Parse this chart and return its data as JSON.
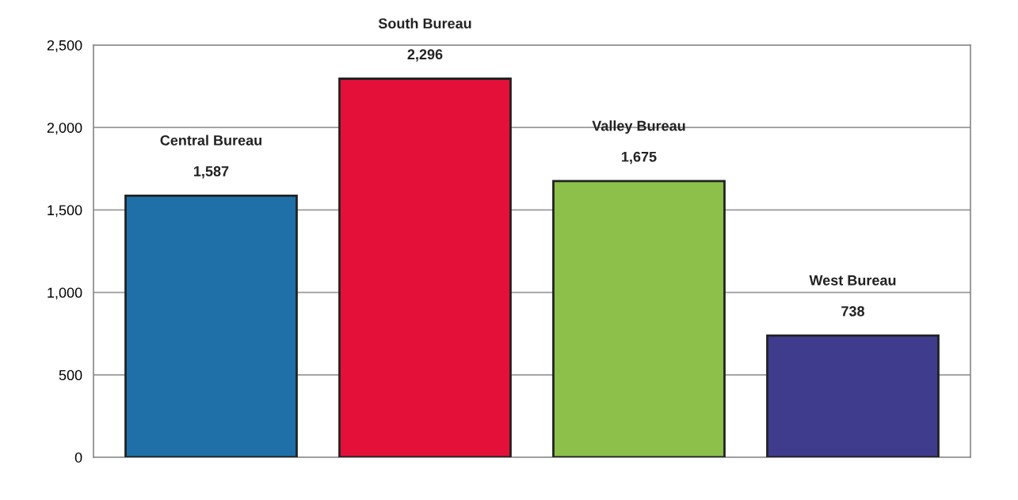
{
  "chart_data": {
    "type": "bar",
    "categories": [
      "Central Bureau",
      "South Bureau",
      "Valley Bureau",
      "West Bureau"
    ],
    "values": [
      1587,
      2296,
      1675,
      738
    ],
    "colors": [
      "#1f6fa8",
      "#e5103a",
      "#8cc04a",
      "#3f3c8e"
    ],
    "value_labels": [
      "1,587",
      "2,296",
      "1,675",
      "738"
    ],
    "ylim": [
      0,
      2500
    ],
    "yticks": [
      0,
      {
        "value": 500,
        "label": "500"
      },
      {
        "value": 1000,
        "label": "1,000"
      },
      {
        "value": 1500,
        "label": "1,500"
      },
      {
        "value": 2000,
        "label": "2,000"
      },
      {
        "value": 2500,
        "label": "2,500"
      }
    ],
    "grid": "y"
  }
}
